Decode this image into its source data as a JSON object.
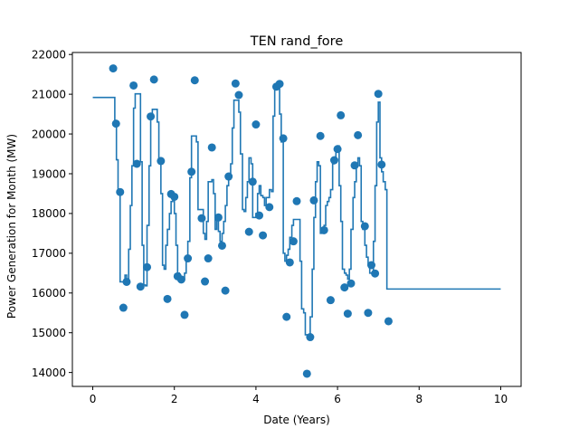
{
  "chart_data": {
    "type": "line",
    "title": "TEN rand_fore",
    "xlabel": "Date (Years)",
    "ylabel": "Power Generation for Month (MW)",
    "xlim": [
      -0.5,
      10.5
    ],
    "ylim": [
      13650,
      22050
    ],
    "x_ticks": [
      0,
      2,
      4,
      6,
      8,
      10
    ],
    "y_ticks": [
      14000,
      15000,
      16000,
      17000,
      18000,
      19000,
      20000,
      21000,
      22000
    ],
    "grid": false,
    "legend": "none",
    "colors": {
      "series": "#1f77b4",
      "axes": "#000000",
      "background": "#ffffff"
    },
    "series": [
      {
        "style": "step-line",
        "points": [
          [
            0.0,
            20920
          ],
          [
            0.5,
            20920
          ],
          [
            0.54,
            20250
          ],
          [
            0.58,
            19350
          ],
          [
            0.62,
            18500
          ],
          [
            0.67,
            16280
          ],
          [
            0.75,
            16280
          ],
          [
            0.79,
            16450
          ],
          [
            0.83,
            16250
          ],
          [
            0.88,
            17100
          ],
          [
            0.92,
            18200
          ],
          [
            0.96,
            19200
          ],
          [
            1.0,
            20650
          ],
          [
            1.04,
            21010
          ],
          [
            1.12,
            21010
          ],
          [
            1.17,
            19300
          ],
          [
            1.21,
            17200
          ],
          [
            1.25,
            16200
          ],
          [
            1.29,
            16180
          ],
          [
            1.33,
            17700
          ],
          [
            1.38,
            19200
          ],
          [
            1.42,
            20450
          ],
          [
            1.46,
            20620
          ],
          [
            1.54,
            20620
          ],
          [
            1.58,
            20300
          ],
          [
            1.62,
            19350
          ],
          [
            1.67,
            18500
          ],
          [
            1.71,
            16700
          ],
          [
            1.75,
            16600
          ],
          [
            1.79,
            17200
          ],
          [
            1.83,
            17600
          ],
          [
            1.88,
            18000
          ],
          [
            1.92,
            18300
          ],
          [
            1.96,
            18450
          ],
          [
            2.0,
            18000
          ],
          [
            2.04,
            17200
          ],
          [
            2.08,
            16500
          ],
          [
            2.12,
            16420
          ],
          [
            2.17,
            16400
          ],
          [
            2.21,
            16350
          ],
          [
            2.25,
            16500
          ],
          [
            2.29,
            16850
          ],
          [
            2.33,
            17300
          ],
          [
            2.38,
            18900
          ],
          [
            2.42,
            19950
          ],
          [
            2.5,
            19950
          ],
          [
            2.54,
            19800
          ],
          [
            2.58,
            18100
          ],
          [
            2.67,
            18100
          ],
          [
            2.71,
            17500
          ],
          [
            2.75,
            17350
          ],
          [
            2.79,
            17800
          ],
          [
            2.83,
            18800
          ],
          [
            2.92,
            18850
          ],
          [
            2.96,
            18500
          ],
          [
            3.0,
            17600
          ],
          [
            3.04,
            17900
          ],
          [
            3.08,
            17550
          ],
          [
            3.12,
            17300
          ],
          [
            3.17,
            17500
          ],
          [
            3.21,
            17800
          ],
          [
            3.25,
            18200
          ],
          [
            3.29,
            18700
          ],
          [
            3.33,
            18900
          ],
          [
            3.38,
            19250
          ],
          [
            3.42,
            20150
          ],
          [
            3.46,
            20850
          ],
          [
            3.54,
            20850
          ],
          [
            3.58,
            20550
          ],
          [
            3.62,
            19500
          ],
          [
            3.67,
            18100
          ],
          [
            3.71,
            18050
          ],
          [
            3.75,
            18400
          ],
          [
            3.79,
            18800
          ],
          [
            3.83,
            19400
          ],
          [
            3.88,
            19250
          ],
          [
            3.92,
            17900
          ],
          [
            3.96,
            17900
          ],
          [
            4.0,
            18000
          ],
          [
            4.04,
            18500
          ],
          [
            4.08,
            18700
          ],
          [
            4.12,
            18450
          ],
          [
            4.17,
            18400
          ],
          [
            4.21,
            18200
          ],
          [
            4.25,
            18400
          ],
          [
            4.29,
            18400
          ],
          [
            4.33,
            18600
          ],
          [
            4.38,
            18550
          ],
          [
            4.42,
            20450
          ],
          [
            4.46,
            21150
          ],
          [
            4.54,
            21150
          ],
          [
            4.58,
            20500
          ],
          [
            4.62,
            19800
          ],
          [
            4.67,
            17000
          ],
          [
            4.71,
            16800
          ],
          [
            4.75,
            16950
          ],
          [
            4.79,
            17100
          ],
          [
            4.83,
            17400
          ],
          [
            4.88,
            17700
          ],
          [
            4.92,
            17850
          ],
          [
            5.04,
            17850
          ],
          [
            5.08,
            16800
          ],
          [
            5.12,
            15600
          ],
          [
            5.17,
            15500
          ],
          [
            5.21,
            14950
          ],
          [
            5.29,
            14950
          ],
          [
            5.33,
            15400
          ],
          [
            5.38,
            16600
          ],
          [
            5.42,
            17900
          ],
          [
            5.46,
            18800
          ],
          [
            5.5,
            19300
          ],
          [
            5.54,
            19200
          ],
          [
            5.58,
            17500
          ],
          [
            5.62,
            17500
          ],
          [
            5.67,
            17700
          ],
          [
            5.71,
            18200
          ],
          [
            5.75,
            18300
          ],
          [
            5.79,
            18400
          ],
          [
            5.83,
            18600
          ],
          [
            5.88,
            19250
          ],
          [
            5.92,
            19400
          ],
          [
            5.96,
            19600
          ],
          [
            6.0,
            19700
          ],
          [
            6.04,
            18700
          ],
          [
            6.08,
            17800
          ],
          [
            6.12,
            16600
          ],
          [
            6.17,
            16500
          ],
          [
            6.21,
            16450
          ],
          [
            6.25,
            16350
          ],
          [
            6.29,
            16600
          ],
          [
            6.33,
            17600
          ],
          [
            6.38,
            18400
          ],
          [
            6.42,
            18800
          ],
          [
            6.46,
            19200
          ],
          [
            6.5,
            19400
          ],
          [
            6.54,
            19200
          ],
          [
            6.58,
            17800
          ],
          [
            6.62,
            17600
          ],
          [
            6.67,
            17200
          ],
          [
            6.71,
            16900
          ],
          [
            6.75,
            16700
          ],
          [
            6.79,
            16500
          ],
          [
            6.83,
            16500
          ],
          [
            6.88,
            17300
          ],
          [
            6.92,
            18700
          ],
          [
            6.96,
            20300
          ],
          [
            7.0,
            20800
          ],
          [
            7.04,
            19400
          ],
          [
            7.08,
            19050
          ],
          [
            7.12,
            18800
          ],
          [
            7.17,
            18600
          ],
          [
            7.21,
            16100
          ],
          [
            10.0,
            16100
          ]
        ]
      },
      {
        "style": "scatter",
        "points": [
          [
            0.5,
            21650
          ],
          [
            0.57,
            20260
          ],
          [
            0.67,
            18540
          ],
          [
            0.75,
            15630
          ],
          [
            0.83,
            16280
          ],
          [
            1.0,
            21220
          ],
          [
            1.08,
            19250
          ],
          [
            1.17,
            16160
          ],
          [
            1.33,
            16650
          ],
          [
            1.42,
            20440
          ],
          [
            1.5,
            21370
          ],
          [
            1.67,
            19320
          ],
          [
            1.83,
            15850
          ],
          [
            1.92,
            18490
          ],
          [
            2.0,
            18420
          ],
          [
            2.08,
            16420
          ],
          [
            2.17,
            16340
          ],
          [
            2.25,
            15450
          ],
          [
            2.33,
            16870
          ],
          [
            2.42,
            19050
          ],
          [
            2.5,
            21350
          ],
          [
            2.67,
            17880
          ],
          [
            2.75,
            16290
          ],
          [
            2.83,
            16870
          ],
          [
            2.92,
            19660
          ],
          [
            3.08,
            17900
          ],
          [
            3.17,
            17190
          ],
          [
            3.25,
            16060
          ],
          [
            3.33,
            18930
          ],
          [
            3.5,
            21270
          ],
          [
            3.58,
            20980
          ],
          [
            3.83,
            17540
          ],
          [
            3.92,
            18800
          ],
          [
            4.0,
            20240
          ],
          [
            4.08,
            17950
          ],
          [
            4.17,
            17450
          ],
          [
            4.33,
            18160
          ],
          [
            4.5,
            21190
          ],
          [
            4.58,
            21260
          ],
          [
            4.67,
            19890
          ],
          [
            4.75,
            15400
          ],
          [
            4.83,
            16770
          ],
          [
            4.92,
            17300
          ],
          [
            5.0,
            18310
          ],
          [
            5.25,
            13970
          ],
          [
            5.33,
            14890
          ],
          [
            5.42,
            18330
          ],
          [
            5.58,
            19950
          ],
          [
            5.67,
            17580
          ],
          [
            5.83,
            15820
          ],
          [
            5.92,
            19340
          ],
          [
            6.0,
            19620
          ],
          [
            6.08,
            20470
          ],
          [
            6.17,
            16140
          ],
          [
            6.25,
            15480
          ],
          [
            6.33,
            16240
          ],
          [
            6.42,
            19210
          ],
          [
            6.5,
            19970
          ],
          [
            6.67,
            17680
          ],
          [
            6.75,
            15500
          ],
          [
            6.83,
            16700
          ],
          [
            6.92,
            16490
          ],
          [
            7.0,
            21010
          ],
          [
            7.08,
            19230
          ],
          [
            7.25,
            15290
          ]
        ]
      }
    ]
  }
}
